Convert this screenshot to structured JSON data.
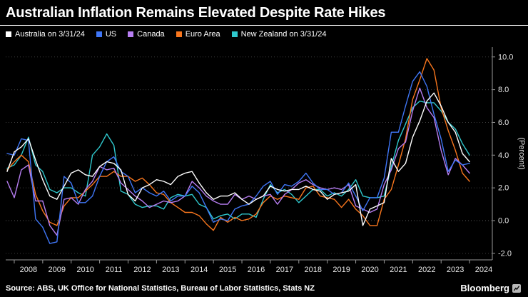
{
  "title": "Australian Inflation Remains Elevated Despite Rate Hikes",
  "source_line": "Source: ABS, UK Office for National Statistics, Bureau of Labor Statistics, Stats NZ",
  "brand": "Bloomberg",
  "legend": [
    {
      "label": "Australia on 3/31/24",
      "color": "#ffffff"
    },
    {
      "label": "US",
      "color": "#3f76f6"
    },
    {
      "label": "Canada",
      "color": "#b77ef2"
    },
    {
      "label": "Euro Area",
      "color": "#f8761d"
    },
    {
      "label": "New Zealand on 3/31/24",
      "color": "#2fc8cd"
    }
  ],
  "colors": {
    "background": "#000000",
    "gridline": "#3d3d3d",
    "zero_line": "#565656",
    "axis": "#9a9a9a",
    "tick_text": "#e8e8e8"
  },
  "chart_data": {
    "type": "line",
    "title": "Australian Inflation Remains Elevated Despite Rate Hikes",
    "xlabel": "",
    "ylabel": "(Percent)",
    "grid": "horizontal dotted",
    "legend_position": "top-left",
    "xlim": [
      2007.7,
      2024.8
    ],
    "ylim": [
      -2.4,
      10.6
    ],
    "yticks": [
      10,
      8,
      6,
      4,
      2,
      0,
      -2
    ],
    "ytick_labels": [
      "10.0",
      "8.0",
      "6.0",
      "4.0",
      "2.0",
      "0.0",
      "-2.0"
    ],
    "xticks": [
      2008,
      2009,
      2010,
      2011,
      2012,
      2013,
      2014,
      2015,
      2016,
      2017,
      2018,
      2019,
      2020,
      2021,
      2022,
      2023,
      2024
    ],
    "x_unit": "quarterly, decimal years (Q1 = .0, Q2 = .25, Q3 = .5, Q4 = .75), last point 3/31/24",
    "x": [
      2007.75,
      2008.0,
      2008.25,
      2008.5,
      2008.75,
      2009.0,
      2009.25,
      2009.5,
      2009.75,
      2010.0,
      2010.25,
      2010.5,
      2010.75,
      2011.0,
      2011.25,
      2011.5,
      2011.75,
      2012.0,
      2012.25,
      2012.5,
      2012.75,
      2013.0,
      2013.25,
      2013.5,
      2013.75,
      2014.0,
      2014.25,
      2014.5,
      2014.75,
      2015.0,
      2015.25,
      2015.5,
      2015.75,
      2016.0,
      2016.25,
      2016.5,
      2016.75,
      2017.0,
      2017.25,
      2017.5,
      2017.75,
      2018.0,
      2018.25,
      2018.5,
      2018.75,
      2019.0,
      2019.25,
      2019.5,
      2019.75,
      2020.0,
      2020.25,
      2020.5,
      2020.75,
      2021.0,
      2021.25,
      2021.5,
      2021.75,
      2022.0,
      2022.25,
      2022.5,
      2022.75,
      2023.0,
      2023.25,
      2023.5,
      2023.75,
      2024.0
    ],
    "series": [
      {
        "name": "Australia",
        "color": "#ffffff",
        "values": [
          3.0,
          4.2,
          4.5,
          5.0,
          3.7,
          2.5,
          1.5,
          1.3,
          2.1,
          2.9,
          3.1,
          2.8,
          2.7,
          3.3,
          3.6,
          3.5,
          3.1,
          1.6,
          1.2,
          2.0,
          2.2,
          2.5,
          2.4,
          2.2,
          2.7,
          2.9,
          3.0,
          2.3,
          1.7,
          1.3,
          1.5,
          1.5,
          1.7,
          1.3,
          1.0,
          1.3,
          1.5,
          2.1,
          1.9,
          1.8,
          1.9,
          1.9,
          2.1,
          1.9,
          1.8,
          1.3,
          1.6,
          1.7,
          1.8,
          2.2,
          -0.3,
          0.7,
          0.9,
          1.1,
          3.8,
          3.0,
          3.5,
          5.1,
          6.1,
          7.3,
          7.8,
          7.0,
          6.0,
          5.4,
          4.1,
          3.6
        ]
      },
      {
        "name": "US",
        "color": "#3f76f6",
        "values": [
          4.1,
          4.0,
          5.0,
          4.9,
          0.1,
          -0.4,
          -1.4,
          -1.3,
          2.7,
          2.3,
          1.1,
          1.1,
          1.5,
          2.7,
          3.6,
          3.9,
          3.0,
          2.7,
          1.7,
          2.0,
          1.7,
          1.5,
          1.8,
          1.2,
          1.5,
          1.5,
          2.1,
          1.7,
          0.8,
          -0.1,
          0.1,
          0.0,
          0.7,
          0.9,
          1.0,
          1.5,
          2.1,
          2.4,
          1.6,
          2.2,
          2.1,
          2.4,
          2.9,
          2.3,
          1.9,
          1.9,
          1.6,
          1.7,
          2.3,
          1.5,
          0.6,
          1.4,
          1.4,
          2.6,
          5.4,
          5.4,
          7.0,
          8.5,
          9.1,
          8.2,
          6.5,
          5.0,
          3.0,
          3.7,
          3.4,
          3.5
        ]
      },
      {
        "name": "Canada",
        "color": "#b77ef2",
        "values": [
          2.4,
          1.4,
          3.1,
          3.4,
          1.2,
          1.2,
          -0.3,
          -0.9,
          1.3,
          1.4,
          1.0,
          1.9,
          2.4,
          3.3,
          3.1,
          3.2,
          2.3,
          1.9,
          1.5,
          1.2,
          0.8,
          1.0,
          1.2,
          1.1,
          1.2,
          1.5,
          2.4,
          2.0,
          1.5,
          1.2,
          1.0,
          1.0,
          1.6,
          1.3,
          1.5,
          1.3,
          1.5,
          1.6,
          1.0,
          1.6,
          1.9,
          2.3,
          2.5,
          2.2,
          2.0,
          1.9,
          2.0,
          1.9,
          2.2,
          0.9,
          0.7,
          0.5,
          0.7,
          2.2,
          3.1,
          4.4,
          4.8,
          6.7,
          8.1,
          6.9,
          6.3,
          4.3,
          2.8,
          3.8,
          3.4,
          2.9
        ]
      },
      {
        "name": "Euro Area",
        "color": "#f8761d",
        "values": [
          3.1,
          3.6,
          4.0,
          3.6,
          1.6,
          0.6,
          -0.1,
          -0.3,
          0.9,
          1.4,
          1.4,
          1.8,
          2.2,
          2.7,
          2.7,
          3.0,
          2.7,
          2.7,
          2.4,
          2.6,
          2.2,
          1.7,
          1.6,
          1.1,
          0.8,
          0.5,
          0.5,
          0.3,
          -0.2,
          -0.6,
          0.2,
          -0.1,
          0.2,
          0.0,
          0.1,
          0.4,
          1.1,
          1.5,
          1.3,
          1.5,
          1.4,
          1.3,
          2.0,
          2.1,
          1.5,
          1.4,
          1.3,
          0.8,
          1.3,
          0.7,
          0.3,
          -0.3,
          -0.3,
          1.3,
          1.9,
          3.4,
          5.0,
          7.4,
          8.6,
          9.9,
          9.2,
          6.9,
          5.5,
          4.3,
          2.9,
          2.4
        ]
      },
      {
        "name": "New Zealand",
        "color": "#2fc8cd",
        "values": [
          3.2,
          3.4,
          4.0,
          5.1,
          3.4,
          3.0,
          1.9,
          1.7,
          2.0,
          2.0,
          1.7,
          1.5,
          4.0,
          4.5,
          5.3,
          4.6,
          1.8,
          1.6,
          1.0,
          0.8,
          0.9,
          0.9,
          0.7,
          1.4,
          1.6,
          1.5,
          1.6,
          1.0,
          0.8,
          0.1,
          0.3,
          0.4,
          0.1,
          0.4,
          0.4,
          0.2,
          1.3,
          2.2,
          1.7,
          1.9,
          1.6,
          1.1,
          1.5,
          1.9,
          1.9,
          1.5,
          1.7,
          1.5,
          1.9,
          2.5,
          1.5,
          1.4,
          1.4,
          1.5,
          3.3,
          4.9,
          5.9,
          6.9,
          7.3,
          7.2,
          7.2,
          6.7,
          6.0,
          5.6,
          4.7,
          4.0
        ]
      }
    ]
  }
}
